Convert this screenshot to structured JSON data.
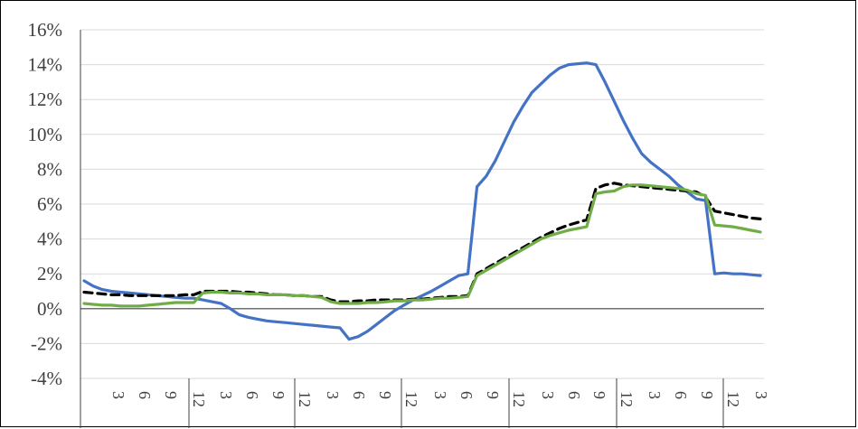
{
  "chart_data": {
    "type": "line",
    "title": "",
    "xlabel": "",
    "ylabel": "",
    "ylim": [
      -4,
      16
    ],
    "y_ticks": [
      -4,
      -2,
      0,
      2,
      4,
      6,
      8,
      10,
      12,
      14,
      16
    ],
    "y_tick_labels": [
      "-4%",
      "-2%",
      "0%",
      "2%",
      "4%",
      "6%",
      "8%",
      "10%",
      "12%",
      "14%",
      "16%"
    ],
    "x_period_labels": [
      "3",
      "6",
      "9",
      "12"
    ],
    "grid": "horizontal",
    "legend": "none",
    "x": [
      0,
      1,
      2,
      3,
      4,
      5,
      6,
      7,
      8,
      9,
      10,
      11,
      12,
      13,
      14,
      15,
      16,
      17,
      18,
      19,
      20,
      21,
      22,
      23,
      24,
      25,
      26,
      27,
      28,
      29,
      30,
      31,
      32,
      33,
      34,
      35,
      36,
      37,
      38,
      39,
      40,
      41,
      42,
      43,
      44,
      45,
      46,
      47,
      48,
      49,
      50,
      51,
      52,
      53,
      54,
      55,
      56,
      57,
      58,
      59,
      60,
      61,
      62,
      63,
      64,
      65,
      66,
      67,
      68,
      69,
      70,
      71,
      72,
      73,
      74
    ],
    "series": [
      {
        "color": "#4472C4",
        "style": "solid",
        "values": [
          1.6,
          1.3,
          1.1,
          1.0,
          0.95,
          0.9,
          0.85,
          0.8,
          0.75,
          0.7,
          0.65,
          0.6,
          0.6,
          0.5,
          0.4,
          0.3,
          0.0,
          -0.35,
          -0.5,
          -0.6,
          -0.7,
          -0.75,
          -0.8,
          -0.85,
          -0.9,
          -0.95,
          -1.0,
          -1.05,
          -1.1,
          -1.75,
          -1.6,
          -1.3,
          -0.9,
          -0.5,
          -0.1,
          0.2,
          0.5,
          0.75,
          1.0,
          1.3,
          1.6,
          1.9,
          2.0,
          7.0,
          7.6,
          8.5,
          9.6,
          10.7,
          11.6,
          12.4,
          12.9,
          13.4,
          13.8,
          14.0,
          14.05,
          14.1,
          14.0,
          13.0,
          11.9,
          10.8,
          9.8,
          8.9,
          8.4,
          8.0,
          7.6,
          7.1,
          6.7,
          6.3,
          6.2,
          2.0,
          2.05,
          2.0,
          2.0,
          1.95,
          1.9
        ]
      },
      {
        "color": "#000000",
        "style": "dashed",
        "values": [
          0.95,
          0.9,
          0.85,
          0.8,
          0.8,
          0.75,
          0.75,
          0.75,
          0.75,
          0.75,
          0.75,
          0.8,
          0.8,
          1.0,
          1.0,
          1.0,
          1.0,
          0.95,
          0.95,
          0.9,
          0.85,
          0.8,
          0.8,
          0.75,
          0.75,
          0.7,
          0.7,
          0.5,
          0.4,
          0.4,
          0.45,
          0.45,
          0.5,
          0.5,
          0.5,
          0.5,
          0.55,
          0.55,
          0.6,
          0.65,
          0.7,
          0.7,
          0.75,
          2.0,
          2.3,
          2.6,
          2.9,
          3.2,
          3.5,
          3.8,
          4.1,
          4.35,
          4.6,
          4.8,
          4.95,
          5.1,
          6.9,
          7.1,
          7.2,
          7.1,
          7.05,
          7.0,
          6.95,
          6.9,
          6.85,
          6.8,
          6.75,
          6.7,
          6.4,
          5.6,
          5.5,
          5.4,
          5.3,
          5.2,
          5.15
        ]
      },
      {
        "color": "#70AD47",
        "style": "solid",
        "values": [
          0.3,
          0.25,
          0.2,
          0.2,
          0.15,
          0.15,
          0.15,
          0.2,
          0.25,
          0.3,
          0.35,
          0.35,
          0.35,
          0.9,
          0.95,
          0.95,
          0.9,
          0.9,
          0.85,
          0.85,
          0.8,
          0.8,
          0.8,
          0.75,
          0.75,
          0.7,
          0.65,
          0.4,
          0.3,
          0.3,
          0.3,
          0.35,
          0.35,
          0.4,
          0.45,
          0.45,
          0.5,
          0.5,
          0.55,
          0.6,
          0.6,
          0.65,
          0.7,
          1.9,
          2.2,
          2.5,
          2.8,
          3.1,
          3.4,
          3.7,
          4.0,
          4.2,
          4.35,
          4.5,
          4.6,
          4.7,
          6.6,
          6.7,
          6.75,
          7.0,
          7.1,
          7.1,
          7.05,
          7.0,
          6.95,
          6.9,
          6.8,
          6.6,
          6.5,
          4.8,
          4.75,
          4.7,
          4.6,
          4.5,
          4.4
        ]
      }
    ]
  }
}
